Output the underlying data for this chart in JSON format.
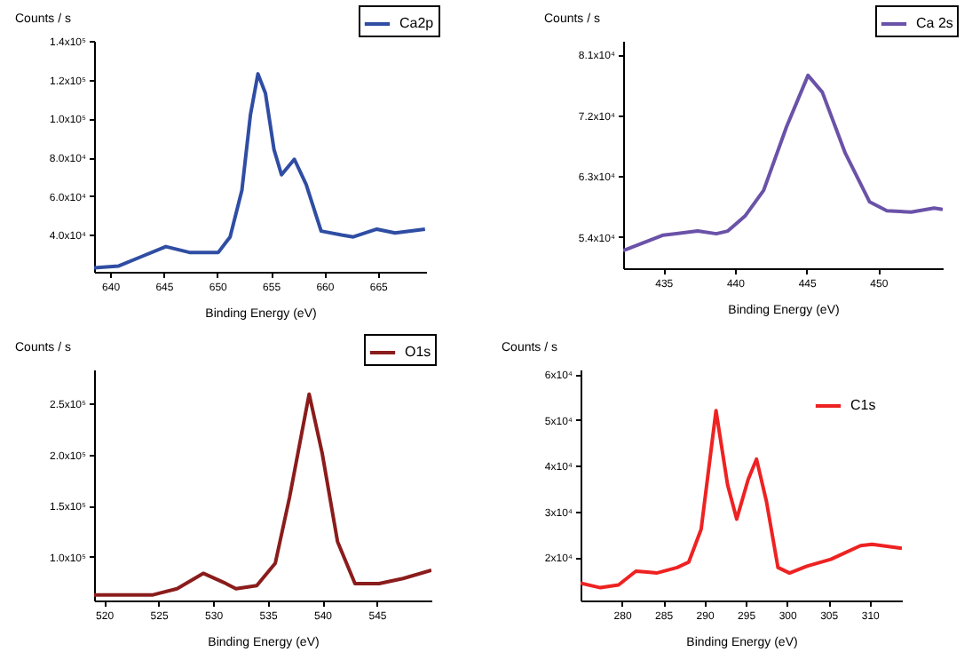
{
  "chart_data": [
    {
      "type": "line",
      "xlabel": "Binding Energy (eV)",
      "ylabel": "Counts / s",
      "legend": "top right",
      "grid": false,
      "xlim": [
        638.5,
        669.5
      ],
      "xticks": [
        640,
        645,
        650,
        655,
        660,
        665
      ],
      "ylim": [
        21000,
        140000
      ],
      "yticks": [
        {
          "value": 40000,
          "label": "4.0x10⁴"
        },
        {
          "value": 60000,
          "label": "6.0x10⁴"
        },
        {
          "value": 80000,
          "label": "8.0x10⁴"
        },
        {
          "value": 100000,
          "label": "1.0x10⁵"
        },
        {
          "value": 120000,
          "label": "1.2x10⁵"
        },
        {
          "value": 140000,
          "label": "1.4x10⁵"
        }
      ],
      "x": [
        638.5,
        640.8,
        643,
        645.2,
        647.4,
        650.1,
        651.2,
        652.3,
        653.1,
        653.8,
        654.5,
        655.3,
        656,
        657.2,
        658.3,
        659.7,
        661.6,
        662.7,
        664.9,
        666.6,
        669.4
      ],
      "series": [
        {
          "name": "Ca2p",
          "color": "#2f4da3",
          "values": [
            23000,
            24000,
            29000,
            34000,
            31000,
            31000,
            39000,
            63000,
            102000,
            123000,
            113000,
            84000,
            71000,
            79000,
            66000,
            42000,
            40000,
            39000,
            43000,
            41000,
            43000
          ]
        }
      ]
    },
    {
      "type": "line",
      "xlabel": "Binding Energy (eV)",
      "ylabel": "Counts / s",
      "legend": "top right",
      "grid": false,
      "xlim": [
        432.2,
        454.5
      ],
      "xticks": [
        435,
        440,
        445,
        450
      ],
      "ylim": [
        49400,
        83000
      ],
      "yticks": [
        {
          "value": 54000,
          "label": "5.4x10⁴"
        },
        {
          "value": 63000,
          "label": "6.3x10⁴"
        },
        {
          "value": 72000,
          "label": "7.2x10⁴"
        },
        {
          "value": 81000,
          "label": "8.1x10⁴"
        }
      ],
      "x": [
        432.2,
        435,
        437.4,
        438.7,
        439.5,
        440.7,
        442,
        443.6,
        445.1,
        446.1,
        447.7,
        449.4,
        450.6,
        452.3,
        453.9,
        454.5
      ],
      "series": [
        {
          "name": "Ca 2s",
          "color": "#6a52a8",
          "values": [
            52000,
            54300,
            54900,
            54500,
            54900,
            57100,
            60900,
            70300,
            77900,
            75400,
            66400,
            59200,
            57900,
            57700,
            58300,
            58100
          ]
        }
      ]
    },
    {
      "type": "line",
      "xlabel": "Binding Energy (eV)",
      "ylabel": "Counts / s",
      "legend": "top right",
      "grid": false,
      "xlim": [
        519.1,
        550
      ],
      "xticks": [
        520,
        525,
        530,
        535,
        540,
        545
      ],
      "ylim": [
        57500,
        283000
      ],
      "yticks": [
        {
          "value": 100000,
          "label": "1.0x10⁵"
        },
        {
          "value": 150000,
          "label": "1.5x10⁵"
        },
        {
          "value": 200000,
          "label": "2.0x10⁵"
        },
        {
          "value": 250000,
          "label": "2.5x10⁵"
        }
      ],
      "x": [
        519.1,
        524.5,
        526.7,
        529.1,
        531,
        532.1,
        534,
        535.7,
        537,
        538.8,
        540,
        541.4,
        543,
        545.2,
        547.4,
        550
      ],
      "series": [
        {
          "name": "O1s",
          "color": "#8b1c1c",
          "values": [
            63000,
            63000,
            69000,
            84000,
            75000,
            69000,
            72000,
            94000,
            158000,
            259000,
            201000,
            115000,
            74000,
            74000,
            79000,
            87000
          ]
        }
      ]
    },
    {
      "type": "line",
      "xlabel": "Binding Energy (eV)",
      "ylabel": "Counts / s",
      "legend": "top right",
      "grid": false,
      "xlim": [
        275,
        313.9
      ],
      "xticks": [
        280,
        285,
        290,
        295,
        300,
        305,
        310
      ],
      "ylim": [
        10500,
        61000
      ],
      "yticks": [
        {
          "value": 20000,
          "label": "2x10⁴"
        },
        {
          "value": 30000,
          "label": "3x10⁴"
        },
        {
          "value": 40000,
          "label": "4x10⁴"
        },
        {
          "value": 50000,
          "label": "5x10⁴"
        },
        {
          "value": 60000,
          "label": "6x10⁴"
        }
      ],
      "x": [
        275,
        277.4,
        279.6,
        281.7,
        283.1,
        284.2,
        286.7,
        288.1,
        289.6,
        291.4,
        292.8,
        293.9,
        295.3,
        296.3,
        297.5,
        298.9,
        300.3,
        302.4,
        305.3,
        308.9,
        310.3,
        313.9
      ],
      "series": [
        {
          "name": "C1s",
          "color": "#ee2222",
          "values": [
            14300,
            13300,
            13900,
            16900,
            16700,
            16500,
            17700,
            18900,
            26100,
            52000,
            35800,
            28300,
            37000,
            41400,
            32200,
            17700,
            16500,
            18000,
            19500,
            22500,
            22800,
            21900
          ]
        }
      ]
    }
  ]
}
